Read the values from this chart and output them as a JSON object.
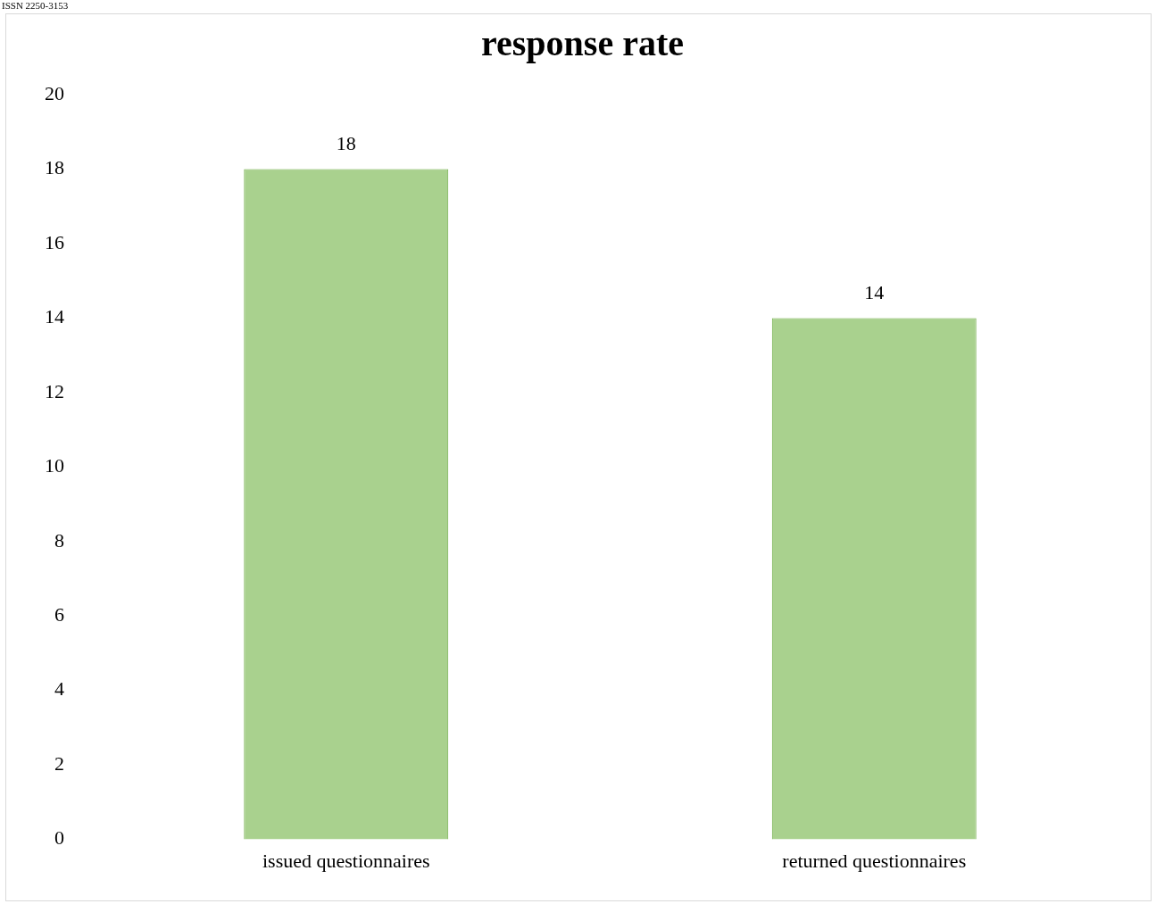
{
  "chart_data": {
    "type": "bar",
    "title": "response rate",
    "annotations": [
      "ISSN 2250-3153"
    ],
    "categories": [
      "issued questionnaires",
      "returned questionnaires"
    ],
    "values": [
      18,
      14
    ],
    "color": "#a9d18e",
    "ylim": [
      0,
      20
    ],
    "yticks": [
      0,
      2,
      4,
      6,
      8,
      10,
      12,
      14,
      16,
      18,
      20
    ],
    "grid": false,
    "legend": false,
    "data_labels": true
  }
}
